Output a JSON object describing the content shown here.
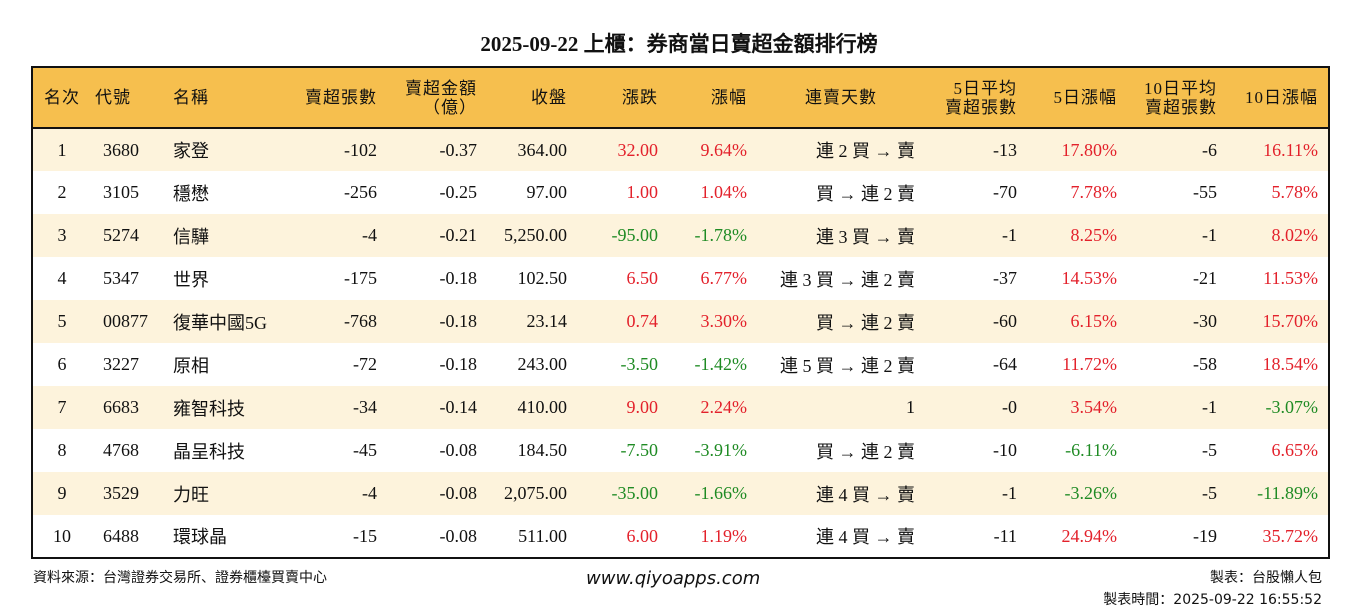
{
  "title": "2025-09-22 上櫃：券商當日賣超金額排行榜",
  "colors": {
    "header": "#F6BF4E",
    "row_alt": "#FDF3DC",
    "up": "#E3212B",
    "down": "#1F8B24"
  },
  "headers": [
    "名次",
    "代號",
    "名稱",
    "賣超張數",
    "賣超金額\n（億）",
    "收盤",
    "漲跌",
    "漲幅",
    "連賣天數",
    "5日平均\n賣超張數",
    "5日漲幅",
    "10日平均\n賣超張數",
    "10日漲幅"
  ],
  "rows": [
    [
      "1",
      "3680",
      "家登",
      "-102",
      "-0.37",
      "364.00",
      "32.00",
      "9.64%",
      "連 2 買 → 賣",
      "-13",
      "17.80%",
      "-6",
      "16.11%"
    ],
    [
      "2",
      "3105",
      "穩懋",
      "-256",
      "-0.25",
      "97.00",
      "1.00",
      "1.04%",
      "買 → 連 2 賣",
      "-70",
      "7.78%",
      "-55",
      "5.78%"
    ],
    [
      "3",
      "5274",
      "信驊",
      "-4",
      "-0.21",
      "5,250.00",
      "-95.00",
      "-1.78%",
      "連 3 買 → 賣",
      "-1",
      "8.25%",
      "-1",
      "8.02%"
    ],
    [
      "4",
      "5347",
      "世界",
      "-175",
      "-0.18",
      "102.50",
      "6.50",
      "6.77%",
      "連 3 買 → 連 2 賣",
      "-37",
      "14.53%",
      "-21",
      "11.53%"
    ],
    [
      "5",
      "00877",
      "復華中國5G",
      "-768",
      "-0.18",
      "23.14",
      "0.74",
      "3.30%",
      "買 → 連 2 賣",
      "-60",
      "6.15%",
      "-30",
      "15.70%"
    ],
    [
      "6",
      "3227",
      "原相",
      "-72",
      "-0.18",
      "243.00",
      "-3.50",
      "-1.42%",
      "連 5 買 → 連 2 賣",
      "-64",
      "11.72%",
      "-58",
      "18.54%"
    ],
    [
      "7",
      "6683",
      "雍智科技",
      "-34",
      "-0.14",
      "410.00",
      "9.00",
      "2.24%",
      "1",
      "-0",
      "3.54%",
      "-1",
      "-3.07%"
    ],
    [
      "8",
      "4768",
      "晶呈科技",
      "-45",
      "-0.08",
      "184.50",
      "-7.50",
      "-3.91%",
      "買 → 連 2 賣",
      "-10",
      "-6.11%",
      "-5",
      "6.65%"
    ],
    [
      "9",
      "3529",
      "力旺",
      "-4",
      "-0.08",
      "2,075.00",
      "-35.00",
      "-1.66%",
      "連 4 買 → 賣",
      "-1",
      "-3.26%",
      "-5",
      "-11.89%"
    ],
    [
      "10",
      "6488",
      "環球晶",
      "-15",
      "-0.08",
      "511.00",
      "6.00",
      "1.19%",
      "連 4 買 → 賣",
      "-11",
      "24.94%",
      "-19",
      "35.72%"
    ]
  ],
  "footer": {
    "source": "資料來源：台灣證券交易所、證券櫃檯買賣中心",
    "site": "www.qiyoapps.com",
    "author": "製表：台股懶人包",
    "time": "製表時間：2025-09-22 16:55:52"
  }
}
